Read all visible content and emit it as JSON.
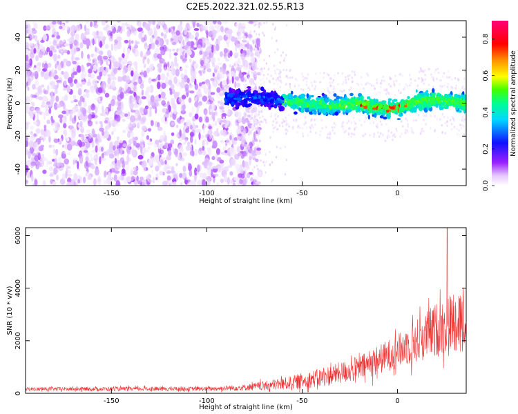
{
  "title": "C2E5.2022.321.02.55.R13",
  "chart_data": [
    {
      "type": "heatmap",
      "xlabel": "Height of straight line (km)",
      "ylabel": "Frequency (Hz)",
      "xlim": [
        -195,
        36
      ],
      "ylim": [
        -50,
        50
      ],
      "xticks": [
        -150,
        -100,
        -50,
        0
      ],
      "yticks": [
        -40,
        -20,
        0,
        20,
        40
      ],
      "colorbar": {
        "label": "Normalized spectral amplitude",
        "range": [
          0.0,
          0.9
        ],
        "ticks": [
          0.0,
          0.2,
          0.4,
          0.6,
          0.8
        ],
        "colors": [
          "#ffffff",
          "#d8b0ff",
          "#8a00ff",
          "#0000ff",
          "#00ccff",
          "#00ff88",
          "#55ff00",
          "#ffff00",
          "#ff8800",
          "#ff0000",
          "#ff0080"
        ]
      },
      "noise_region_end_km": -78,
      "signal_center_freq": [
        {
          "x": -90,
          "y": 3
        },
        {
          "x": -70,
          "y": 3
        },
        {
          "x": -50,
          "y": 0
        },
        {
          "x": -35,
          "y": -2
        },
        {
          "x": -20,
          "y": 0
        },
        {
          "x": -10,
          "y": -3
        },
        {
          "x": 0,
          "y": -3
        },
        {
          "x": 10,
          "y": 1
        },
        {
          "x": 20,
          "y": 2
        },
        {
          "x": 36,
          "y": 0
        }
      ]
    },
    {
      "type": "line",
      "xlabel": "Height of straight line (km)",
      "ylabel": "SNR (10 * v/v)",
      "xlim": [
        -195,
        36
      ],
      "ylim": [
        0,
        6300
      ],
      "xticks": [
        -150,
        -100,
        -50,
        0
      ],
      "yticks": [
        0,
        2000,
        4000,
        6000
      ],
      "color": "#ee3333",
      "envelope": [
        {
          "x": -195,
          "base": 160,
          "spread": 90
        },
        {
          "x": -100,
          "base": 170,
          "spread": 100
        },
        {
          "x": -80,
          "base": 220,
          "spread": 150
        },
        {
          "x": -60,
          "base": 350,
          "spread": 300
        },
        {
          "x": -40,
          "base": 600,
          "spread": 450
        },
        {
          "x": -20,
          "base": 950,
          "spread": 600
        },
        {
          "x": 0,
          "base": 1600,
          "spread": 800
        },
        {
          "x": 20,
          "base": 2400,
          "spread": 1300
        },
        {
          "x": 36,
          "base": 3000,
          "spread": 1600
        }
      ],
      "peak": {
        "x": 26,
        "y": 6300
      }
    }
  ]
}
